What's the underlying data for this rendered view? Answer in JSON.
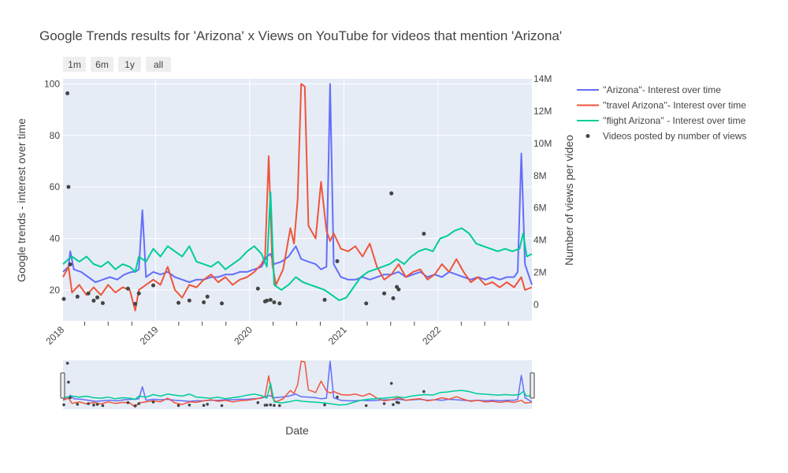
{
  "chart_data": {
    "type": "line",
    "title": "Google Trends results for 'Arizona' x Views on YouTube for videos that mention 'Arizona'",
    "xlabel": "Date",
    "ylabel": "Google trends - interest over time",
    "y2label": "Number of views per video",
    "x_ticks": [
      "2018",
      "2019",
      "2020",
      "2021",
      "2022"
    ],
    "y_ticks": [
      20,
      40,
      60,
      80,
      100
    ],
    "y2_ticks": [
      "0",
      "2M",
      "4M",
      "6M",
      "8M",
      "10M",
      "12M",
      "14M"
    ],
    "y2_tick_values": [
      0,
      2000000,
      4000000,
      6000000,
      8000000,
      10000000,
      12000000,
      14000000
    ],
    "xlim": [
      "2018-01-07",
      "2022-12-31"
    ],
    "ylim": [
      8,
      102
    ],
    "y2lim": [
      -1000000,
      14000000
    ],
    "range_buttons": [
      "1m",
      "6m",
      "1y",
      "all"
    ],
    "grid": true,
    "legend_position": "right",
    "series": [
      {
        "name": "''Arizona''- Interest over time",
        "color": "#636efa",
        "points": [
          [
            "2018-01-07",
            27
          ],
          [
            "2018-01-28",
            29
          ],
          [
            "2018-02-04",
            35
          ],
          [
            "2018-02-18",
            28
          ],
          [
            "2018-03-18",
            27
          ],
          [
            "2018-04-15",
            25
          ],
          [
            "2018-05-13",
            23
          ],
          [
            "2018-06-10",
            24
          ],
          [
            "2018-07-08",
            25
          ],
          [
            "2018-08-05",
            24
          ],
          [
            "2018-09-02",
            26
          ],
          [
            "2018-09-30",
            27
          ],
          [
            "2018-10-14",
            27
          ],
          [
            "2018-10-28",
            28
          ],
          [
            "2018-11-11",
            51
          ],
          [
            "2018-11-25",
            25
          ],
          [
            "2018-12-23",
            27
          ],
          [
            "2019-01-20",
            26
          ],
          [
            "2019-02-17",
            27
          ],
          [
            "2019-03-17",
            25
          ],
          [
            "2019-04-14",
            24
          ],
          [
            "2019-05-12",
            23
          ],
          [
            "2019-06-09",
            24
          ],
          [
            "2019-07-07",
            24
          ],
          [
            "2019-08-04",
            25
          ],
          [
            "2019-09-01",
            25
          ],
          [
            "2019-09-29",
            26
          ],
          [
            "2019-10-27",
            26
          ],
          [
            "2019-11-24",
            27
          ],
          [
            "2019-12-22",
            27
          ],
          [
            "2020-01-19",
            28
          ],
          [
            "2020-02-16",
            29
          ],
          [
            "2020-03-08",
            33
          ],
          [
            "2020-03-22",
            34
          ],
          [
            "2020-04-05",
            30
          ],
          [
            "2020-05-03",
            31
          ],
          [
            "2020-05-31",
            33
          ],
          [
            "2020-06-28",
            37
          ],
          [
            "2020-07-19",
            32
          ],
          [
            "2020-08-16",
            31
          ],
          [
            "2020-09-13",
            30
          ],
          [
            "2020-10-04",
            28
          ],
          [
            "2020-10-25",
            29
          ],
          [
            "2020-11-08",
            100
          ],
          [
            "2020-11-22",
            30
          ],
          [
            "2020-12-20",
            25
          ],
          [
            "2021-01-17",
            24
          ],
          [
            "2021-02-14",
            24
          ],
          [
            "2021-03-14",
            25
          ],
          [
            "2021-04-11",
            24
          ],
          [
            "2021-05-09",
            25
          ],
          [
            "2021-06-06",
            26
          ],
          [
            "2021-07-04",
            26
          ],
          [
            "2021-08-01",
            27
          ],
          [
            "2021-08-29",
            25
          ],
          [
            "2021-09-26",
            26
          ],
          [
            "2021-10-24",
            27
          ],
          [
            "2021-11-21",
            25
          ],
          [
            "2021-12-19",
            26
          ],
          [
            "2022-01-16",
            25
          ],
          [
            "2022-02-13",
            27
          ],
          [
            "2022-03-13",
            26
          ],
          [
            "2022-04-10",
            25
          ],
          [
            "2022-05-08",
            24
          ],
          [
            "2022-06-05",
            25
          ],
          [
            "2022-07-03",
            24
          ],
          [
            "2022-07-31",
            25
          ],
          [
            "2022-08-28",
            24
          ],
          [
            "2022-09-25",
            25
          ],
          [
            "2022-10-23",
            25
          ],
          [
            "2022-11-06",
            27
          ],
          [
            "2022-11-20",
            73
          ],
          [
            "2022-12-04",
            30
          ],
          [
            "2022-12-31",
            22
          ]
        ]
      },
      {
        "name": "''travel Arizona''- Interest over time",
        "color": "#ef553b",
        "points": [
          [
            "2018-01-07",
            25
          ],
          [
            "2018-01-28",
            29
          ],
          [
            "2018-02-11",
            19
          ],
          [
            "2018-03-11",
            22
          ],
          [
            "2018-04-08",
            18
          ],
          [
            "2018-05-06",
            21
          ],
          [
            "2018-06-03",
            18
          ],
          [
            "2018-07-01",
            22
          ],
          [
            "2018-07-29",
            19
          ],
          [
            "2018-08-26",
            21
          ],
          [
            "2018-09-23",
            20
          ],
          [
            "2018-10-14",
            12
          ],
          [
            "2018-10-28",
            20
          ],
          [
            "2018-11-25",
            22
          ],
          [
            "2018-12-23",
            24
          ],
          [
            "2019-01-20",
            22
          ],
          [
            "2019-02-17",
            29
          ],
          [
            "2019-03-17",
            20
          ],
          [
            "2019-04-14",
            17
          ],
          [
            "2019-05-12",
            22
          ],
          [
            "2019-06-09",
            21
          ],
          [
            "2019-07-07",
            24
          ],
          [
            "2019-08-04",
            26
          ],
          [
            "2019-09-01",
            23
          ],
          [
            "2019-09-29",
            25
          ],
          [
            "2019-10-27",
            22
          ],
          [
            "2019-11-24",
            24
          ],
          [
            "2019-12-22",
            25
          ],
          [
            "2020-01-19",
            27
          ],
          [
            "2020-02-16",
            30
          ],
          [
            "2020-03-01",
            33
          ],
          [
            "2020-03-15",
            72
          ],
          [
            "2020-03-29",
            30
          ],
          [
            "2020-04-12",
            22
          ],
          [
            "2020-05-10",
            28
          ],
          [
            "2020-06-07",
            44
          ],
          [
            "2020-06-21",
            38
          ],
          [
            "2020-07-05",
            55
          ],
          [
            "2020-07-19",
            100
          ],
          [
            "2020-08-02",
            99
          ],
          [
            "2020-08-16",
            45
          ],
          [
            "2020-09-13",
            40
          ],
          [
            "2020-10-04",
            62
          ],
          [
            "2020-10-25",
            43
          ],
          [
            "2020-11-08",
            39
          ],
          [
            "2020-11-22",
            42
          ],
          [
            "2020-12-20",
            36
          ],
          [
            "2021-01-17",
            35
          ],
          [
            "2021-02-14",
            37
          ],
          [
            "2021-03-14",
            33
          ],
          [
            "2021-04-11",
            38
          ],
          [
            "2021-05-09",
            29
          ],
          [
            "2021-06-06",
            24
          ],
          [
            "2021-07-04",
            26
          ],
          [
            "2021-08-01",
            30
          ],
          [
            "2021-08-29",
            25
          ],
          [
            "2021-09-26",
            27
          ],
          [
            "2021-10-24",
            28
          ],
          [
            "2021-11-21",
            24
          ],
          [
            "2021-12-19",
            26
          ],
          [
            "2022-01-16",
            30
          ],
          [
            "2022-02-13",
            27
          ],
          [
            "2022-03-13",
            32
          ],
          [
            "2022-04-10",
            27
          ],
          [
            "2022-05-08",
            23
          ],
          [
            "2022-06-05",
            25
          ],
          [
            "2022-07-03",
            22
          ],
          [
            "2022-07-31",
            23
          ],
          [
            "2022-08-28",
            21
          ],
          [
            "2022-09-25",
            23
          ],
          [
            "2022-10-23",
            21
          ],
          [
            "2022-11-20",
            25
          ],
          [
            "2022-12-04",
            20
          ],
          [
            "2022-12-31",
            21
          ]
        ]
      },
      {
        "name": "''flight Arizona'' - Interest over time",
        "color": "#00cc96",
        "points": [
          [
            "2018-01-07",
            30
          ],
          [
            "2018-01-28",
            32
          ],
          [
            "2018-02-11",
            33
          ],
          [
            "2018-03-11",
            31
          ],
          [
            "2018-04-08",
            33
          ],
          [
            "2018-05-06",
            30
          ],
          [
            "2018-06-03",
            29
          ],
          [
            "2018-07-01",
            31
          ],
          [
            "2018-07-29",
            28
          ],
          [
            "2018-08-26",
            30
          ],
          [
            "2018-09-23",
            29
          ],
          [
            "2018-10-14",
            27
          ],
          [
            "2018-10-28",
            33
          ],
          [
            "2018-11-25",
            31
          ],
          [
            "2018-12-23",
            36
          ],
          [
            "2019-01-20",
            33
          ],
          [
            "2019-02-17",
            37
          ],
          [
            "2019-03-17",
            35
          ],
          [
            "2019-04-14",
            33
          ],
          [
            "2019-05-12",
            37
          ],
          [
            "2019-06-09",
            31
          ],
          [
            "2019-07-07",
            30
          ],
          [
            "2019-08-04",
            29
          ],
          [
            "2019-09-01",
            31
          ],
          [
            "2019-09-29",
            28
          ],
          [
            "2019-10-27",
            30
          ],
          [
            "2019-11-24",
            32
          ],
          [
            "2019-12-22",
            35
          ],
          [
            "2020-01-19",
            37
          ],
          [
            "2020-02-16",
            34
          ],
          [
            "2020-03-08",
            29
          ],
          [
            "2020-03-22",
            58
          ],
          [
            "2020-04-05",
            22
          ],
          [
            "2020-05-03",
            20
          ],
          [
            "2020-05-31",
            22
          ],
          [
            "2020-06-28",
            25
          ],
          [
            "2020-07-26",
            23
          ],
          [
            "2020-08-23",
            22
          ],
          [
            "2020-09-20",
            21
          ],
          [
            "2020-10-18",
            20
          ],
          [
            "2020-11-15",
            18
          ],
          [
            "2020-12-13",
            16
          ],
          [
            "2021-01-10",
            17
          ],
          [
            "2021-02-07",
            21
          ],
          [
            "2021-03-07",
            25
          ],
          [
            "2021-04-04",
            27
          ],
          [
            "2021-05-02",
            28
          ],
          [
            "2021-05-30",
            29
          ],
          [
            "2021-06-27",
            30
          ],
          [
            "2021-07-25",
            32
          ],
          [
            "2021-08-22",
            30
          ],
          [
            "2021-09-19",
            33
          ],
          [
            "2021-10-17",
            35
          ],
          [
            "2021-11-14",
            36
          ],
          [
            "2021-12-12",
            35
          ],
          [
            "2022-01-09",
            40
          ],
          [
            "2022-02-06",
            41
          ],
          [
            "2022-03-06",
            43
          ],
          [
            "2022-04-03",
            44
          ],
          [
            "2022-05-01",
            42
          ],
          [
            "2022-05-29",
            38
          ],
          [
            "2022-06-26",
            37
          ],
          [
            "2022-07-24",
            36
          ],
          [
            "2022-08-21",
            35
          ],
          [
            "2022-09-18",
            36
          ],
          [
            "2022-10-16",
            35
          ],
          [
            "2022-11-13",
            36
          ],
          [
            "2022-11-27",
            42
          ],
          [
            "2022-12-11",
            33
          ],
          [
            "2022-12-31",
            34
          ]
        ]
      }
    ],
    "scatter": {
      "name": "Videos posted by number of views",
      "color": "#444444",
      "points": [
        [
          "2018-01-10",
          360000
        ],
        [
          "2018-01-24",
          13100000
        ],
        [
          "2018-01-28",
          7300000
        ],
        [
          "2018-02-04",
          2500000
        ],
        [
          "2018-03-04",
          500000
        ],
        [
          "2018-04-15",
          700000
        ],
        [
          "2018-05-06",
          250000
        ],
        [
          "2018-05-20",
          450000
        ],
        [
          "2018-06-10",
          100000
        ],
        [
          "2018-09-16",
          1000000
        ],
        [
          "2018-10-14",
          50000
        ],
        [
          "2018-10-28",
          700000
        ],
        [
          "2018-12-23",
          1200000
        ],
        [
          "2019-03-31",
          120000
        ],
        [
          "2019-05-12",
          260000
        ],
        [
          "2019-07-07",
          150000
        ],
        [
          "2019-07-21",
          500000
        ],
        [
          "2019-09-15",
          80000
        ],
        [
          "2020-02-02",
          1000000
        ],
        [
          "2020-03-01",
          200000
        ],
        [
          "2020-03-08",
          250000
        ],
        [
          "2020-03-22",
          300000
        ],
        [
          "2020-04-05",
          150000
        ],
        [
          "2020-04-26",
          80000
        ],
        [
          "2020-10-18",
          300000
        ],
        [
          "2020-12-06",
          2700000
        ],
        [
          "2021-03-28",
          80000
        ],
        [
          "2021-06-06",
          700000
        ],
        [
          "2021-07-04",
          6900000
        ],
        [
          "2021-07-25",
          1100000
        ],
        [
          "2021-07-11",
          400000
        ],
        [
          "2021-08-01",
          950000
        ],
        [
          "2021-11-07",
          4400000
        ]
      ]
    }
  }
}
